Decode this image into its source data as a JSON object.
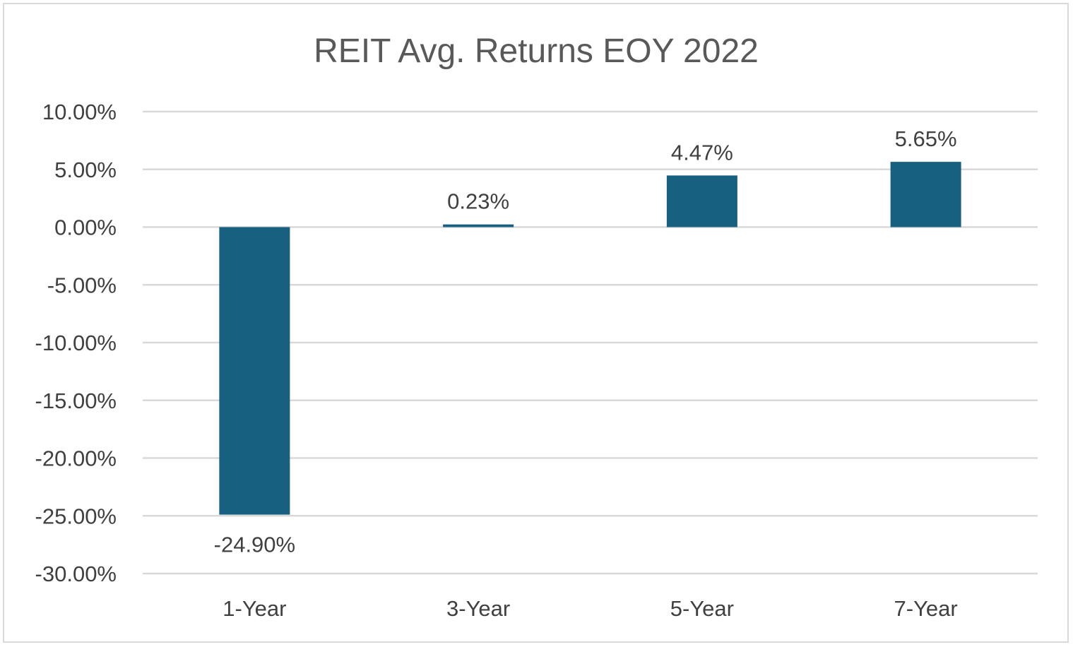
{
  "chart_data": {
    "type": "bar",
    "title": "REIT Avg. Returns EOY 2022",
    "xlabel": "",
    "ylabel": "",
    "categories": [
      "1-Year",
      "3-Year",
      "5-Year",
      "7-Year"
    ],
    "values": [
      -24.9,
      0.23,
      4.47,
      5.65
    ],
    "data_labels": [
      "-24.90%",
      "0.23%",
      "4.47%",
      "5.65%"
    ],
    "ylim": [
      -30,
      10
    ],
    "y_ticks": [
      10,
      5,
      0,
      -5,
      -10,
      -15,
      -20,
      -25,
      -30
    ],
    "y_tick_labels": [
      "10.00%",
      "5.00%",
      "0.00%",
      "-5.00%",
      "-10.00%",
      "-15.00%",
      "-20.00%",
      "-25.00%",
      "-30.00%"
    ],
    "grid": true,
    "legend": "none",
    "bar_color": "#17607f",
    "grid_color": "#d9d9d9"
  }
}
